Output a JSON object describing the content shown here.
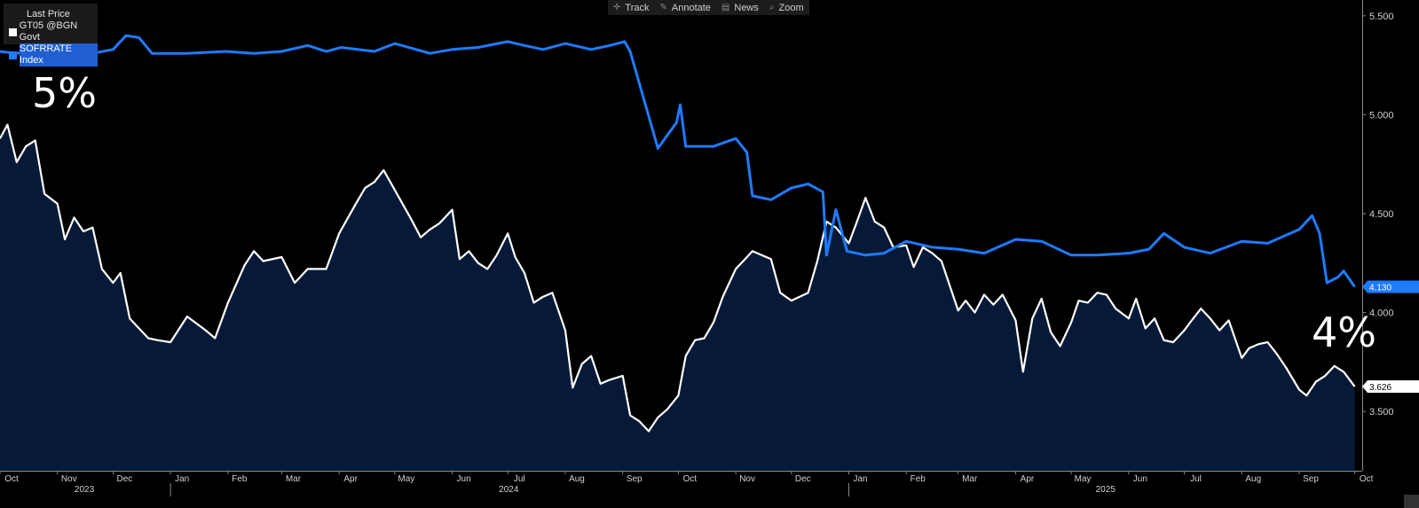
{
  "toolbar": {
    "items": [
      {
        "label": "Track",
        "icon": "crosshair-icon",
        "glyph": "✛"
      },
      {
        "label": "Annotate",
        "icon": "pencil-icon",
        "glyph": "✎"
      },
      {
        "label": "News",
        "icon": "news-icon",
        "glyph": "▤"
      },
      {
        "label": "Zoom",
        "icon": "magnifier-icon",
        "glyph": "⌕"
      }
    ]
  },
  "legend": {
    "title": "Last Price",
    "entries": [
      {
        "label": "GT05 @BGN Govt",
        "color": "#ffffff"
      },
      {
        "label": "SOFRRATE Index",
        "color": "#1f7bff"
      }
    ]
  },
  "annotations": {
    "left": "5%",
    "right": "4%"
  },
  "colors": {
    "background": "#000000",
    "sofr": "#1f7bff",
    "gt05": "#ffffff",
    "area": "#061a38",
    "axis": "#cfcfcf"
  },
  "chart_data": {
    "type": "line",
    "x_axis": {
      "months": [
        "Oct",
        "Nov",
        "Dec",
        "Jan",
        "Feb",
        "Mar",
        "Apr",
        "May",
        "Jun",
        "Jul",
        "Aug",
        "Sep",
        "Oct",
        "Nov",
        "Dec",
        "Jan",
        "Feb",
        "Mar",
        "Apr",
        "May",
        "Jun",
        "Jul",
        "Aug",
        "Sep",
        "Oct"
      ],
      "years": [
        "2023",
        "2024",
        "2025"
      ],
      "range": [
        "2023-10-01",
        "2025-10-05"
      ]
    },
    "y_axis": {
      "ticks": [
        "5.500",
        "5.000",
        "4.500",
        "4.000",
        "3.500"
      ],
      "tick_values": [
        5.5,
        5.0,
        4.5,
        4.0,
        3.5
      ],
      "ylim": [
        3.2,
        5.58
      ]
    },
    "last_value_labels": [
      {
        "series": "SOFRRATE Index",
        "text": "4.130",
        "value": 4.13
      },
      {
        "series": "GT05 @BGN Govt",
        "text": "3.626",
        "value": 3.626
      }
    ],
    "series": [
      {
        "name": "SOFRRATE Index",
        "style": "line",
        "points": [
          [
            "2023-10-01",
            5.32
          ],
          [
            "2023-10-10",
            5.31
          ],
          [
            "2023-10-20",
            5.33
          ],
          [
            "2023-11-01",
            5.35
          ],
          [
            "2023-11-10",
            5.32
          ],
          [
            "2023-11-20",
            5.31
          ],
          [
            "2023-12-01",
            5.33
          ],
          [
            "2023-12-08",
            5.4
          ],
          [
            "2023-12-15",
            5.39
          ],
          [
            "2023-12-22",
            5.31
          ],
          [
            "2024-01-10",
            5.31
          ],
          [
            "2024-01-31",
            5.32
          ],
          [
            "2024-02-15",
            5.31
          ],
          [
            "2024-03-01",
            5.32
          ],
          [
            "2024-03-15",
            5.35
          ],
          [
            "2024-03-25",
            5.32
          ],
          [
            "2024-04-02",
            5.34
          ],
          [
            "2024-04-20",
            5.32
          ],
          [
            "2024-05-01",
            5.36
          ],
          [
            "2024-05-20",
            5.31
          ],
          [
            "2024-06-01",
            5.33
          ],
          [
            "2024-06-15",
            5.34
          ],
          [
            "2024-07-01",
            5.37
          ],
          [
            "2024-07-10",
            5.35
          ],
          [
            "2024-07-20",
            5.33
          ],
          [
            "2024-08-01",
            5.36
          ],
          [
            "2024-08-15",
            5.33
          ],
          [
            "2024-08-25",
            5.35
          ],
          [
            "2024-09-02",
            5.37
          ],
          [
            "2024-09-05",
            5.32
          ],
          [
            "2024-09-20",
            4.83
          ],
          [
            "2024-09-30",
            4.96
          ],
          [
            "2024-10-02",
            5.05
          ],
          [
            "2024-10-05",
            4.84
          ],
          [
            "2024-10-20",
            4.84
          ],
          [
            "2024-11-01",
            4.88
          ],
          [
            "2024-11-07",
            4.81
          ],
          [
            "2024-11-10",
            4.59
          ],
          [
            "2024-11-20",
            4.57
          ],
          [
            "2024-12-01",
            4.63
          ],
          [
            "2024-12-10",
            4.65
          ],
          [
            "2024-12-18",
            4.61
          ],
          [
            "2024-12-20",
            4.29
          ],
          [
            "2024-12-25",
            4.52
          ],
          [
            "2024-12-31",
            4.31
          ],
          [
            "2025-01-10",
            4.29
          ],
          [
            "2025-01-20",
            4.3
          ],
          [
            "2025-02-01",
            4.36
          ],
          [
            "2025-02-15",
            4.33
          ],
          [
            "2025-03-01",
            4.32
          ],
          [
            "2025-03-15",
            4.3
          ],
          [
            "2025-04-01",
            4.37
          ],
          [
            "2025-04-15",
            4.36
          ],
          [
            "2025-05-01",
            4.29
          ],
          [
            "2025-05-15",
            4.29
          ],
          [
            "2025-06-01",
            4.3
          ],
          [
            "2025-06-12",
            4.32
          ],
          [
            "2025-06-20",
            4.4
          ],
          [
            "2025-07-01",
            4.33
          ],
          [
            "2025-07-15",
            4.3
          ],
          [
            "2025-08-01",
            4.36
          ],
          [
            "2025-08-15",
            4.35
          ],
          [
            "2025-09-01",
            4.42
          ],
          [
            "2025-09-08",
            4.49
          ],
          [
            "2025-09-12",
            4.4
          ],
          [
            "2025-09-16",
            4.15
          ],
          [
            "2025-09-22",
            4.18
          ],
          [
            "2025-09-25",
            4.21
          ],
          [
            "2025-10-01",
            4.13
          ]
        ]
      },
      {
        "name": "GT05 @BGN Govt",
        "style": "area",
        "points": [
          [
            "2023-10-01",
            4.88
          ],
          [
            "2023-10-05",
            4.95
          ],
          [
            "2023-10-10",
            4.76
          ],
          [
            "2023-10-15",
            4.84
          ],
          [
            "2023-10-20",
            4.87
          ],
          [
            "2023-10-25",
            4.6
          ],
          [
            "2023-11-01",
            4.55
          ],
          [
            "2023-11-05",
            4.37
          ],
          [
            "2023-11-10",
            4.48
          ],
          [
            "2023-11-15",
            4.41
          ],
          [
            "2023-11-20",
            4.43
          ],
          [
            "2023-11-25",
            4.22
          ],
          [
            "2023-12-01",
            4.15
          ],
          [
            "2023-12-05",
            4.2
          ],
          [
            "2023-12-10",
            3.97
          ],
          [
            "2023-12-15",
            3.92
          ],
          [
            "2023-12-20",
            3.87
          ],
          [
            "2023-12-25",
            3.86
          ],
          [
            "2024-01-01",
            3.85
          ],
          [
            "2024-01-10",
            3.98
          ],
          [
            "2024-01-20",
            3.91
          ],
          [
            "2024-01-25",
            3.87
          ],
          [
            "2024-02-01",
            4.05
          ],
          [
            "2024-02-10",
            4.24
          ],
          [
            "2024-02-15",
            4.31
          ],
          [
            "2024-02-20",
            4.26
          ],
          [
            "2024-03-01",
            4.28
          ],
          [
            "2024-03-08",
            4.15
          ],
          [
            "2024-03-15",
            4.22
          ],
          [
            "2024-03-25",
            4.22
          ],
          [
            "2024-04-01",
            4.4
          ],
          [
            "2024-04-10",
            4.55
          ],
          [
            "2024-04-15",
            4.63
          ],
          [
            "2024-04-20",
            4.66
          ],
          [
            "2024-04-25",
            4.72
          ],
          [
            "2024-05-01",
            4.62
          ],
          [
            "2024-05-10",
            4.47
          ],
          [
            "2024-05-15",
            4.38
          ],
          [
            "2024-05-20",
            4.42
          ],
          [
            "2024-05-25",
            4.45
          ],
          [
            "2024-06-01",
            4.52
          ],
          [
            "2024-06-05",
            4.27
          ],
          [
            "2024-06-10",
            4.31
          ],
          [
            "2024-06-15",
            4.25
          ],
          [
            "2024-06-20",
            4.22
          ],
          [
            "2024-06-25",
            4.29
          ],
          [
            "2024-07-01",
            4.4
          ],
          [
            "2024-07-05",
            4.28
          ],
          [
            "2024-07-10",
            4.2
          ],
          [
            "2024-07-15",
            4.05
          ],
          [
            "2024-07-20",
            4.08
          ],
          [
            "2024-07-25",
            4.1
          ],
          [
            "2024-08-01",
            3.91
          ],
          [
            "2024-08-05",
            3.62
          ],
          [
            "2024-08-10",
            3.74
          ],
          [
            "2024-08-15",
            3.78
          ],
          [
            "2024-08-20",
            3.64
          ],
          [
            "2024-08-25",
            3.66
          ],
          [
            "2024-09-01",
            3.68
          ],
          [
            "2024-09-05",
            3.48
          ],
          [
            "2024-09-10",
            3.45
          ],
          [
            "2024-09-15",
            3.4
          ],
          [
            "2024-09-20",
            3.47
          ],
          [
            "2024-09-25",
            3.51
          ],
          [
            "2024-10-01",
            3.58
          ],
          [
            "2024-10-05",
            3.78
          ],
          [
            "2024-10-10",
            3.86
          ],
          [
            "2024-10-15",
            3.87
          ],
          [
            "2024-10-20",
            3.95
          ],
          [
            "2024-10-25",
            4.08
          ],
          [
            "2024-11-01",
            4.22
          ],
          [
            "2024-11-05",
            4.26
          ],
          [
            "2024-11-10",
            4.31
          ],
          [
            "2024-11-15",
            4.29
          ],
          [
            "2024-11-20",
            4.27
          ],
          [
            "2024-11-25",
            4.1
          ],
          [
            "2024-12-01",
            4.06
          ],
          [
            "2024-12-10",
            4.1
          ],
          [
            "2024-12-15",
            4.26
          ],
          [
            "2024-12-20",
            4.46
          ],
          [
            "2024-12-25",
            4.43
          ],
          [
            "2025-01-01",
            4.35
          ],
          [
            "2025-01-05",
            4.45
          ],
          [
            "2025-01-10",
            4.58
          ],
          [
            "2025-01-15",
            4.46
          ],
          [
            "2025-01-20",
            4.43
          ],
          [
            "2025-01-25",
            4.33
          ],
          [
            "2025-02-01",
            4.34
          ],
          [
            "2025-02-05",
            4.23
          ],
          [
            "2025-02-10",
            4.33
          ],
          [
            "2025-02-15",
            4.3
          ],
          [
            "2025-02-20",
            4.26
          ],
          [
            "2025-03-01",
            4.01
          ],
          [
            "2025-03-05",
            4.06
          ],
          [
            "2025-03-10",
            4.0
          ],
          [
            "2025-03-15",
            4.09
          ],
          [
            "2025-03-20",
            4.04
          ],
          [
            "2025-03-25",
            4.09
          ],
          [
            "2025-04-01",
            3.96
          ],
          [
            "2025-04-05",
            3.7
          ],
          [
            "2025-04-10",
            3.97
          ],
          [
            "2025-04-15",
            4.07
          ],
          [
            "2025-04-20",
            3.9
          ],
          [
            "2025-04-25",
            3.83
          ],
          [
            "2025-05-01",
            3.95
          ],
          [
            "2025-05-05",
            4.06
          ],
          [
            "2025-05-10",
            4.05
          ],
          [
            "2025-05-15",
            4.1
          ],
          [
            "2025-05-20",
            4.09
          ],
          [
            "2025-05-25",
            4.02
          ],
          [
            "2025-06-01",
            3.97
          ],
          [
            "2025-06-05",
            4.07
          ],
          [
            "2025-06-10",
            3.92
          ],
          [
            "2025-06-15",
            3.97
          ],
          [
            "2025-06-20",
            3.86
          ],
          [
            "2025-06-25",
            3.85
          ],
          [
            "2025-07-01",
            3.91
          ],
          [
            "2025-07-05",
            3.96
          ],
          [
            "2025-07-10",
            4.02
          ],
          [
            "2025-07-15",
            3.97
          ],
          [
            "2025-07-20",
            3.91
          ],
          [
            "2025-07-25",
            3.96
          ],
          [
            "2025-08-01",
            3.77
          ],
          [
            "2025-08-05",
            3.82
          ],
          [
            "2025-08-10",
            3.84
          ],
          [
            "2025-08-15",
            3.85
          ],
          [
            "2025-08-20",
            3.79
          ],
          [
            "2025-08-25",
            3.72
          ],
          [
            "2025-09-01",
            3.61
          ],
          [
            "2025-09-05",
            3.58
          ],
          [
            "2025-09-10",
            3.65
          ],
          [
            "2025-09-15",
            3.68
          ],
          [
            "2025-09-20",
            3.73
          ],
          [
            "2025-09-25",
            3.7
          ],
          [
            "2025-10-01",
            3.626
          ]
        ]
      }
    ],
    "grid": false,
    "legend_position": "top-left"
  }
}
